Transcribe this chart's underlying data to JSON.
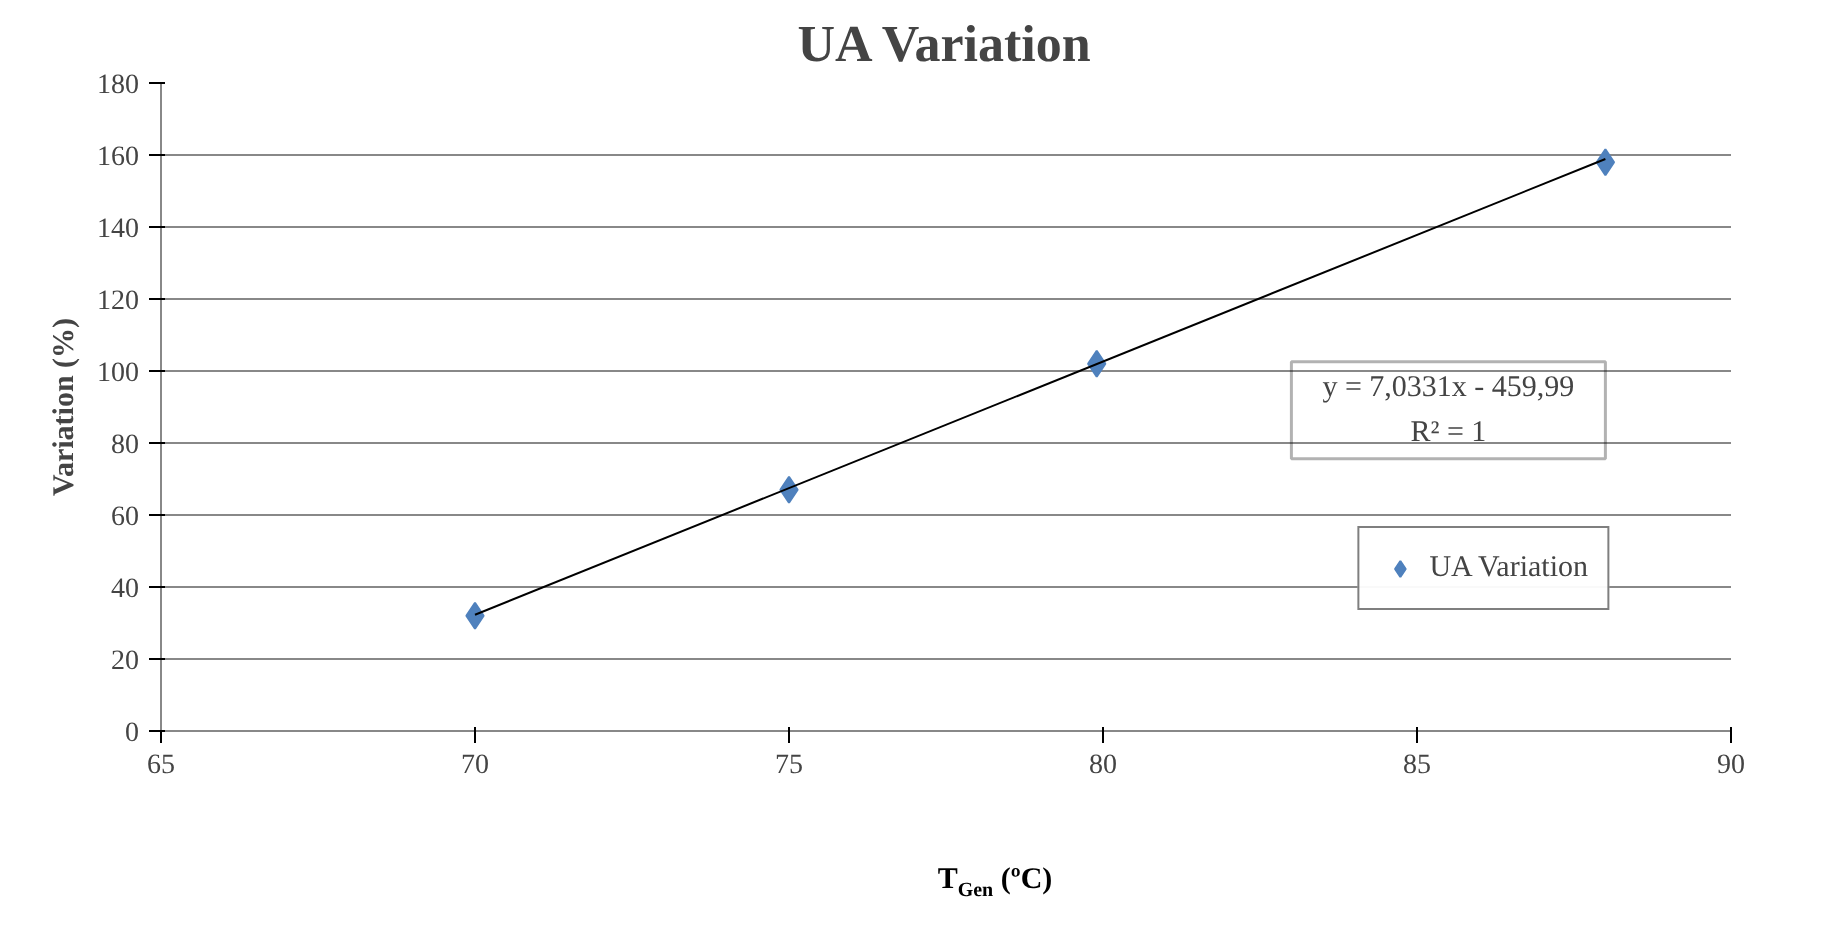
{
  "chart_data": {
    "type": "scatter",
    "title": "UA Variation",
    "xlabel": "T$_{Gen}$ (ºC)",
    "ylabel": "Variation (%)",
    "xlim": [
      65,
      90
    ],
    "xticks": [
      65,
      70,
      75,
      80,
      85,
      90
    ],
    "ylim": [
      0,
      180
    ],
    "yticks": [
      0,
      20,
      40,
      60,
      80,
      100,
      120,
      140,
      160,
      180
    ],
    "grid": "y",
    "legend": "bottom right",
    "marker": "diamond",
    "series": [
      {
        "name": "UA Variation",
        "color": "#4f81bd",
        "x": [
          70,
          75,
          79.9,
          88
        ],
        "values": [
          32,
          67,
          102,
          158
        ]
      },
      {
        "type": "line",
        "color": "#000000",
        "x": [
          70,
          88
        ],
        "values": [
          32.3,
          158.9
        ],
        "line_style": "solid",
        "marker": "none"
      }
    ],
    "annotations": [
      "y = 7,0331x - 459,99",
      "R² = 1"
    ]
  }
}
